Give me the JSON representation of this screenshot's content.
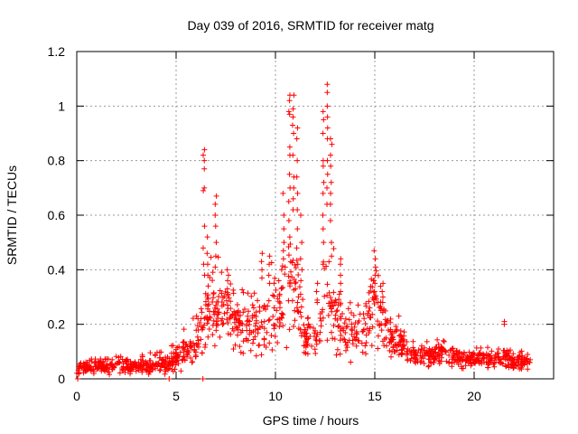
{
  "chart_data": {
    "type": "scatter",
    "title": "Day 039 of 2016, SRMTID for receiver matg",
    "xlabel": "GPS time / hours",
    "ylabel": "SRMTID / TECUs",
    "xlim": [
      0,
      24
    ],
    "ylim": [
      0,
      1.2
    ],
    "x_ticks": [
      0,
      5,
      10,
      15,
      20
    ],
    "x_tick_labels": [
      "0",
      "5",
      "10",
      "15",
      "20"
    ],
    "y_ticks": [
      0,
      0.2,
      0.4,
      0.6,
      0.8,
      1,
      1.2
    ],
    "y_tick_labels": [
      "0",
      "0.2",
      "0.4",
      "0.6",
      "0.8",
      "1",
      "1.2"
    ],
    "grid": true,
    "legend": "none",
    "marker": "+",
    "series_color": "#ff0000",
    "envelope": {
      "description": "approximate typical SRMTID level and spread of the scatter across the day",
      "x": [
        0,
        0.2,
        0.5,
        1,
        2,
        3,
        4,
        4.6,
        5.0,
        5.5,
        6.0,
        6.3,
        6.6,
        7.0,
        7.5,
        8,
        8.5,
        9,
        9.5,
        10,
        10.3,
        10.6,
        11,
        11.5,
        12,
        12.3,
        12.6,
        13,
        13.5,
        14,
        14.5,
        15,
        15.3,
        15.8,
        16.5,
        17,
        18,
        18.5,
        19,
        20,
        21,
        21.5,
        22,
        22.9
      ],
      "level": [
        0.03,
        0.04,
        0.045,
        0.045,
        0.05,
        0.045,
        0.05,
        0.06,
        0.07,
        0.11,
        0.12,
        0.18,
        0.25,
        0.22,
        0.24,
        0.2,
        0.2,
        0.2,
        0.18,
        0.22,
        0.28,
        0.35,
        0.3,
        0.15,
        0.14,
        0.22,
        0.3,
        0.22,
        0.18,
        0.16,
        0.18,
        0.28,
        0.22,
        0.15,
        0.12,
        0.08,
        0.09,
        0.1,
        0.08,
        0.07,
        0.07,
        0.08,
        0.06,
        0.06
      ],
      "spread": [
        0.02,
        0.02,
        0.02,
        0.02,
        0.025,
        0.02,
        0.025,
        0.03,
        0.04,
        0.05,
        0.05,
        0.1,
        0.12,
        0.1,
        0.1,
        0.08,
        0.08,
        0.09,
        0.09,
        0.1,
        0.12,
        0.15,
        0.12,
        0.06,
        0.06,
        0.1,
        0.12,
        0.1,
        0.08,
        0.07,
        0.08,
        0.1,
        0.08,
        0.06,
        0.05,
        0.03,
        0.03,
        0.04,
        0.03,
        0.025,
        0.025,
        0.03,
        0.025,
        0.025
      ]
    },
    "x_end": 22.9,
    "peaks": [
      {
        "x": 6.4,
        "values": [
          0.84,
          0.82,
          0.8,
          0.77,
          0.7,
          0.69,
          0.56,
          0.48,
          0.42,
          0.38
        ]
      },
      {
        "x": 6.6,
        "values": [
          0.52,
          0.46,
          0.42,
          0.38,
          0.34
        ]
      },
      {
        "x": 7.0,
        "values": [
          0.67,
          0.64,
          0.6,
          0.56,
          0.5,
          0.45,
          0.41
        ]
      },
      {
        "x": 7.6,
        "values": [
          0.4,
          0.38,
          0.36,
          0.33,
          0.31
        ]
      },
      {
        "x": 9.3,
        "values": [
          0.46,
          0.43,
          0.4,
          0.37
        ]
      },
      {
        "x": 9.7,
        "values": [
          0.45,
          0.42,
          0.38,
          0.35
        ]
      },
      {
        "x": 10.4,
        "values": [
          0.68,
          0.6,
          0.55,
          0.5,
          0.47,
          0.44
        ]
      },
      {
        "x": 10.7,
        "values": [
          1.04,
          1.02,
          0.98,
          0.97,
          0.85,
          0.82,
          0.75,
          0.7,
          0.65,
          0.58,
          0.52
        ]
      },
      {
        "x": 10.9,
        "values": [
          1.04,
          0.99,
          0.96,
          0.93,
          0.9,
          0.82,
          0.74,
          0.7,
          0.66,
          0.62
        ]
      },
      {
        "x": 11.1,
        "values": [
          0.92,
          0.88,
          0.8,
          0.74,
          0.68,
          0.62,
          0.55,
          0.48,
          0.42
        ]
      },
      {
        "x": 11.3,
        "values": [
          0.6,
          0.5,
          0.44,
          0.4,
          0.36
        ]
      },
      {
        "x": 12.1,
        "values": [
          0.35,
          0.32,
          0.28
        ]
      },
      {
        "x": 12.4,
        "values": [
          0.98,
          0.95,
          0.9,
          0.8,
          0.78,
          0.72,
          0.68,
          0.6,
          0.55,
          0.5,
          0.42
        ]
      },
      {
        "x": 12.6,
        "values": [
          1.08,
          1.05,
          1.0,
          0.96,
          0.92,
          0.88,
          0.8,
          0.75,
          0.7,
          0.64
        ]
      },
      {
        "x": 12.8,
        "values": [
          0.88,
          0.86,
          0.82,
          0.78,
          0.72,
          0.68,
          0.64,
          0.58,
          0.5,
          0.45
        ]
      },
      {
        "x": 13.3,
        "values": [
          0.44,
          0.42,
          0.38,
          0.35,
          0.32
        ]
      },
      {
        "x": 15.0,
        "values": [
          0.47,
          0.44,
          0.41,
          0.38,
          0.35,
          0.32
        ]
      },
      {
        "x": 15.4,
        "values": [
          0.35,
          0.32,
          0.3,
          0.28
        ]
      },
      {
        "x": 21.5,
        "values": [
          0.21,
          0.2
        ]
      }
    ],
    "baseline_points": [
      {
        "x": 0.05,
        "y": 0.0
      },
      {
        "x": 4.65,
        "y": 0.0
      },
      {
        "x": 6.35,
        "y": 0.0
      }
    ]
  }
}
